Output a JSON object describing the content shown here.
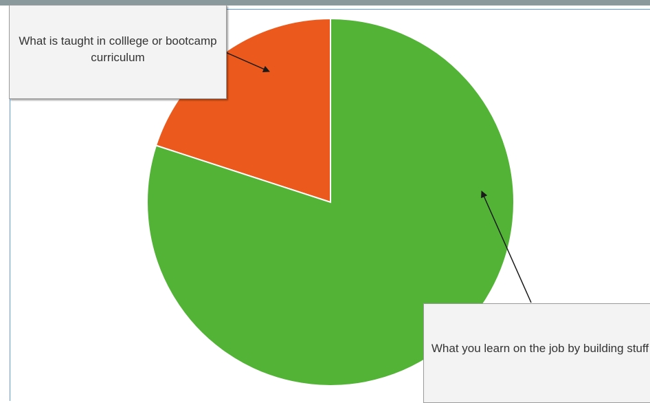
{
  "chart_data": {
    "type": "pie",
    "title": "",
    "start_angle_deg": 0,
    "slices": [
      {
        "label": "What is taught in colllege or bootcamp curriculum",
        "value": 20,
        "color": "#eb5a1c"
      },
      {
        "label": "What you learn on the job by building stuff",
        "value": 80,
        "color": "#52b337"
      }
    ]
  },
  "annotations": {
    "taught": "What is taught in colllege or bootcamp curriculum",
    "on_job": "What you learn on the job by building stuff"
  },
  "colors": {
    "slice_border": "#ffffff",
    "arrow": "#333333",
    "frame": "#5b9bd5"
  }
}
